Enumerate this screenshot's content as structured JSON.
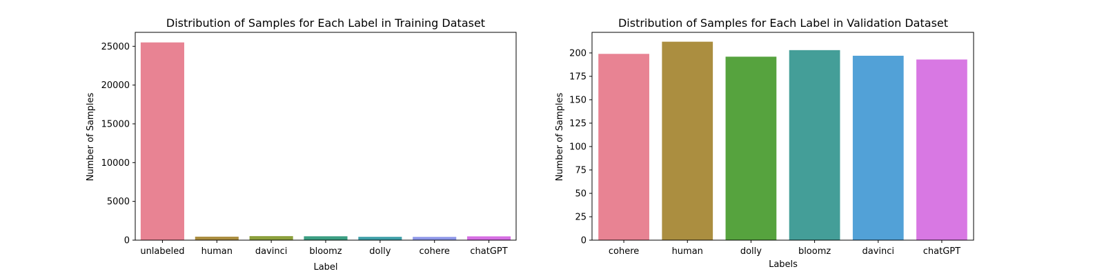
{
  "chart_data": [
    {
      "type": "bar",
      "title": "Distribution of Samples for Each Label in Training Dataset",
      "xlabel": "Label",
      "ylabel": "Number of Samples",
      "categories": [
        "unlabeled",
        "human",
        "davinci",
        "bloomz",
        "dolly",
        "cohere",
        "chatGPT"
      ],
      "values": [
        25500,
        450,
        520,
        500,
        430,
        420,
        490
      ],
      "colors": [
        "#e88393",
        "#ab8e40",
        "#8ca03c",
        "#3b9e82",
        "#3fa0a8",
        "#8e97e8",
        "#d66ee3"
      ],
      "ylim": [
        0,
        26800
      ],
      "yticks": [
        0,
        5000,
        10000,
        15000,
        20000,
        25000
      ],
      "grid": false,
      "legend": "none"
    },
    {
      "type": "bar",
      "title": "Distribution of Samples for Each Label in Validation Dataset",
      "xlabel": "Labels",
      "ylabel": "Number of Samples",
      "categories": [
        "cohere",
        "human",
        "dolly",
        "bloomz",
        "davinci",
        "chatGPT"
      ],
      "values": [
        199,
        212,
        196,
        203,
        197,
        193
      ],
      "colors": [
        "#e88393",
        "#ab8e40",
        "#56a33e",
        "#449e98",
        "#52a1d7",
        "#d878e3"
      ],
      "ylim": [
        0,
        222
      ],
      "yticks": [
        0,
        25,
        50,
        75,
        100,
        125,
        150,
        175,
        200
      ],
      "grid": false,
      "legend": "none"
    }
  ]
}
